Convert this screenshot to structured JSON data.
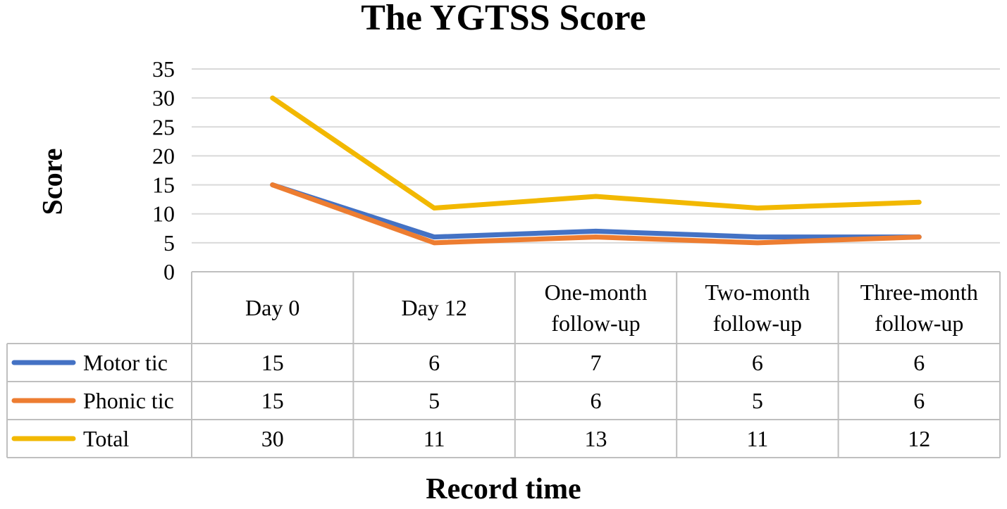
{
  "chart_data": {
    "type": "line",
    "title": "The YGTSS Score",
    "xlabel": "Record time",
    "ylabel": "Score",
    "ylim": [
      0,
      35
    ],
    "yticks": [
      0,
      5,
      10,
      15,
      20,
      25,
      30,
      35
    ],
    "grid": true,
    "legend": "data-table",
    "categories": [
      [
        "Day 0"
      ],
      [
        "Day 12"
      ],
      [
        "One-month",
        "follow-up"
      ],
      [
        "Two-month",
        "follow-up"
      ],
      [
        "Three-month",
        "follow-up"
      ]
    ],
    "series": [
      {
        "name": "Motor tic",
        "color": "#4472C4",
        "values": [
          15,
          6,
          7,
          6,
          6
        ]
      },
      {
        "name": "Phonic tic",
        "color": "#ED7D31",
        "values": [
          15,
          5,
          6,
          5,
          6
        ]
      },
      {
        "name": "Total",
        "color": "#F2B800",
        "values": [
          30,
          11,
          13,
          11,
          12
        ]
      }
    ]
  }
}
